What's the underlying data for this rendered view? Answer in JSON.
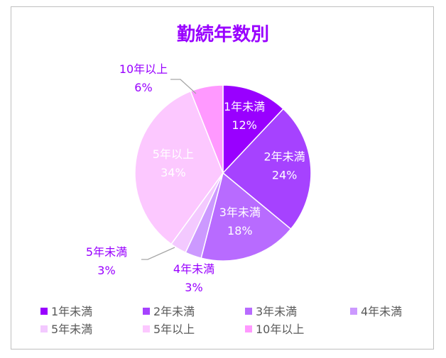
{
  "chart_data": {
    "type": "pie",
    "title": "勤続年数別",
    "legend_position": "bottom",
    "start_angle": "12 o'clock",
    "direction": "clockwise",
    "slices": [
      {
        "label": "1年未満",
        "value": 12,
        "display": "12%",
        "color": "#9900ff"
      },
      {
        "label": "2年未満",
        "value": 24,
        "display": "24%",
        "color": "#a642ff"
      },
      {
        "label": "3年未満",
        "value": 18,
        "display": "18%",
        "color": "#b86bff"
      },
      {
        "label": "4年未満",
        "value": 3,
        "display": "3%",
        "color": "#cc99ff"
      },
      {
        "label": "5年未満",
        "value": 3,
        "display": "3%",
        "color": "#f3c9ff"
      },
      {
        "label": "5年以上",
        "value": 34,
        "display": "34%",
        "color": "#fcc8ff"
      },
      {
        "label": "10年以上",
        "value": 6,
        "display": "6%",
        "color": "#ff99ff"
      }
    ],
    "title_color": "#9900ff",
    "outside_label_color": "#9900ff",
    "inside_label_color": "#ffffff"
  }
}
